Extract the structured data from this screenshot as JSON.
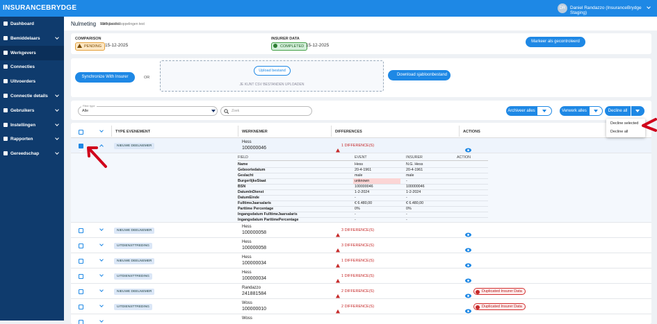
{
  "topbar": {
    "logo": "INSURANCEBRYDGE",
    "avatar": "DR",
    "user": "Daniel Randazzo (InsuranceBrydge Staging)"
  },
  "sidebar": {
    "items": [
      "Dashboard",
      "Bemiddelaars",
      "Werkgevers",
      "Connecties",
      "Uitvoerders",
      "Connectie details",
      "Gebruikers",
      "Instellingen",
      "Rapporten",
      "Gereedschap"
    ],
    "expandable": [
      false,
      true,
      false,
      false,
      false,
      true,
      true,
      true,
      true,
      true
    ],
    "active": "Werkgevers"
  },
  "header": {
    "title": "Nulmeting",
    "separator": ">",
    "breadcrumb": [
      "Werkgevers",
      "VDO Salariskoppelingen test",
      "Railforce B.V."
    ]
  },
  "status": {
    "comparison_label": "COMPARISON",
    "comparison_status": "PENDING",
    "comparison_date": "15-12-2025",
    "insurer_label": "INSURER DATA",
    "insurer_status": "COMPLETED",
    "insurer_date": "15-12-2025",
    "mark_button": "Markeer als gecontroleerd"
  },
  "upload": {
    "sync_button": "Synchronize With Insurer",
    "or": "OR",
    "upload_button": "Upload bestand",
    "hint": "JE KUNT CSV BESTANDEN UPLOADEN",
    "download_button": "Download sjabloonbestand"
  },
  "filters": {
    "filter_label": "Filter type",
    "filter_value": "Alle",
    "search_placeholder": "Zoek",
    "archive_button": "Archiveer alles",
    "process_button": "Verwerk alles",
    "decline_button": "Decline all",
    "decline_menu": [
      "Decline selected",
      "Decline all"
    ]
  },
  "table": {
    "columns": [
      "TYPE EVENEMENT",
      "WERKNEMER",
      "DIFFERENCES",
      "ACTIONS"
    ],
    "rows": [
      {
        "type": "NIEUWE DEELNEMER",
        "name": "Hess",
        "id": "100000046",
        "differences": "1 DIFFERENCE(S)",
        "checked": true
      },
      {
        "type": "NIEUWE DEELNEMER",
        "name": "Hess",
        "id": "100000058",
        "differences": "3 DIFFERENCE(S)"
      },
      {
        "type": "UITDIENSTTREDING",
        "name": "Hess",
        "id": "100000058",
        "differences": "3 DIFFERENCE(S)"
      },
      {
        "type": "NIEUWE DEELNEMER",
        "name": "Hess",
        "id": "100000034",
        "differences": "1 DIFFERENCE(S)"
      },
      {
        "type": "UITDIENSTTREDING",
        "name": "Hess",
        "id": "100000034",
        "differences": "1 DIFFERENCE(S)"
      },
      {
        "type": "NIEUWE DEELNEMER",
        "name": "Randazzo",
        "id": "241881584",
        "differences": "2 DIFFERENCE(S)",
        "warning": "Duplicated Insurer Data"
      },
      {
        "type": "UITDIENSTTREDING",
        "name": "Woss",
        "id": "100000010",
        "differences": "2 DIFFERENCE(S)",
        "warning": "Duplicated Insurer Data"
      },
      {
        "name": "Woss"
      }
    ]
  },
  "detail": {
    "columns": [
      "FIELD",
      "EVENT",
      "INSURER",
      "ACTION"
    ],
    "rows": [
      [
        "Name",
        "Hess",
        "N.G. Hess"
      ],
      [
        "Geboortedatum",
        "20-4-1961",
        "20-4-1961"
      ],
      [
        "Geslacht",
        "male",
        "male"
      ],
      [
        "BurgerlijkeStaat",
        "unknown",
        "-"
      ],
      [
        "BSN",
        "100000046",
        "100000046"
      ],
      [
        "DatumInDienst",
        "1-2-2024",
        "1-2-2024"
      ],
      [
        "DatumEinde",
        "-",
        "-"
      ],
      [
        "FulltimeJaarsalaris",
        "€ 6.480,00",
        "€ 6.480,00"
      ],
      [
        "Parttime Percentage",
        "0%",
        "0%"
      ],
      [
        "Ingangsdatum FulltimeJaarsalaris",
        "-",
        "-"
      ],
      [
        "Ingangsdatum ParttimePercentage",
        "-",
        "-"
      ]
    ],
    "highlight": [
      3
    ]
  }
}
